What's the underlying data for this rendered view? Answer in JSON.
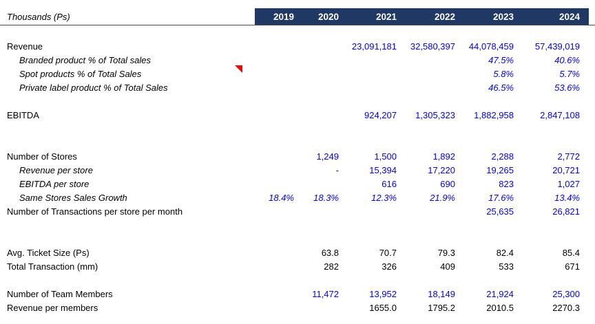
{
  "colors": {
    "value_blue": "#0000FF",
    "text_black": "#000000",
    "header_bg": "#1F3864",
    "header_text": "#FFFFFF",
    "rule_line": "#4a4a4a",
    "comment_red": "#FF0000"
  },
  "header": {
    "label": "Thousands (Ps)",
    "years": [
      "2019",
      "2020",
      "2021",
      "2022",
      "2023",
      "2024"
    ]
  },
  "rows": [
    {
      "blank": true
    },
    {
      "label": "Revenue",
      "values": [
        "",
        "",
        "23,091,181",
        "32,580,397",
        "44,078,459",
        "57,439,019"
      ],
      "values_color": "blue"
    },
    {
      "label": "Branded product % of Total sales",
      "indent": true,
      "label_italic": true,
      "values": [
        "",
        "",
        "",
        "",
        "47.5%",
        "40.6%"
      ],
      "values_color": "blue",
      "values_italic": true
    },
    {
      "label": "Spot products % of Total Sales",
      "indent": true,
      "label_italic": true,
      "comment": true,
      "values": [
        "",
        "",
        "",
        "",
        "5.8%",
        "5.7%"
      ],
      "values_color": "blue",
      "values_italic": true
    },
    {
      "label": "Private label product % of Total Sales",
      "indent": true,
      "label_italic": true,
      "values": [
        "",
        "",
        "",
        "",
        "46.5%",
        "53.6%"
      ],
      "values_color": "blue",
      "values_italic": true
    },
    {
      "blank": true
    },
    {
      "label": "EBITDA",
      "values": [
        "",
        "",
        "924,207",
        "1,305,323",
        "1,882,958",
        "2,847,108"
      ],
      "values_color": "blue"
    },
    {
      "blank": true
    },
    {
      "blank": true
    },
    {
      "label": "Number of Stores",
      "values": [
        "",
        "1,249",
        "1,500",
        "1,892",
        "2,288",
        "2,772"
      ],
      "values_color": "blue"
    },
    {
      "label": "Revenue per store",
      "indent": true,
      "label_italic": true,
      "values": [
        "",
        "-",
        "15,394",
        "17,220",
        "19,265",
        "20,721"
      ],
      "values_color": "blue"
    },
    {
      "label": "EBITDA per store",
      "indent": true,
      "label_italic": true,
      "values": [
        "",
        "",
        "616",
        "690",
        "823",
        "1,027"
      ],
      "values_color": "blue"
    },
    {
      "label": "Same Stores Sales Growth",
      "indent": true,
      "label_italic": true,
      "values": [
        "18.4%",
        "18.3%",
        "12.3%",
        "21.9%",
        "17.6%",
        "13.4%"
      ],
      "values_color": "blue",
      "values_italic": true
    },
    {
      "label": "Number of Transactions per store per month",
      "values": [
        "",
        "",
        "",
        "",
        "25,635",
        "26,821"
      ],
      "values_color": "blue"
    },
    {
      "blank": true
    },
    {
      "blank": true
    },
    {
      "label": "Avg. Ticket Size (Ps)",
      "values": [
        "",
        "63.8",
        "70.7",
        "79.3",
        "82.4",
        "85.4"
      ],
      "values_color": "black"
    },
    {
      "label": "Total Transaction (mm)",
      "values": [
        "",
        "282",
        "326",
        "409",
        "533",
        "671"
      ],
      "values_color": "black"
    },
    {
      "blank": true
    },
    {
      "label": "Number of Team Members",
      "values": [
        "",
        "11,472",
        "13,952",
        "18,149",
        "21,924",
        "25,300"
      ],
      "values_color": "blue"
    },
    {
      "label": "Revenue per members",
      "values": [
        "",
        "",
        "1655.0",
        "1795.2",
        "2010.5",
        "2270.3"
      ],
      "values_color": "black"
    }
  ]
}
